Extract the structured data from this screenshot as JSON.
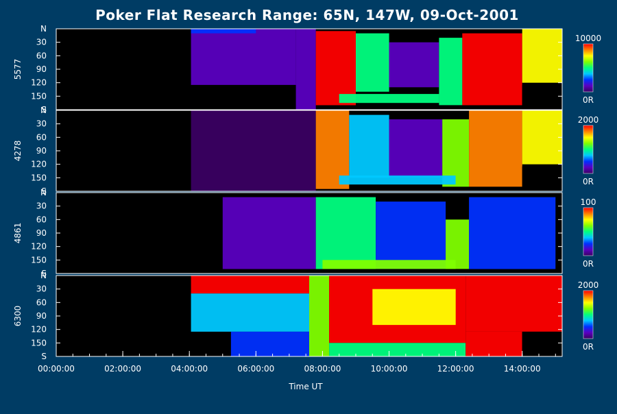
{
  "chart_data": {
    "type": "heatmap",
    "title": "Poker Flat Research Range: 65N, 147W, 09-Oct-2001",
    "xlabel": "Time UT",
    "x_ticks": [
      "00:00:00",
      "02:00:00",
      "04:00:00",
      "06:00:00",
      "08:00:00",
      "10:00:00",
      "12:00:00",
      "14:00:00"
    ],
    "x_range_hours": [
      0,
      15.2
    ],
    "y_ticks": [
      "N",
      "30",
      "60",
      "90",
      "120",
      "150",
      "S"
    ],
    "y_range_deg": [
      0,
      180
    ],
    "colormap": [
      "#3a0062",
      "#5a00c0",
      "#0030ff",
      "#00c8ff",
      "#00ff80",
      "#80ff00",
      "#ffff00",
      "#ff8000",
      "#ff0000"
    ],
    "background_color": "#003c64",
    "panels": [
      {
        "wavelength": "5577",
        "cb_max": "10000",
        "cb_min": "0R",
        "blocks": [
          {
            "t0": 0,
            "t1": 4.05,
            "a0": 0,
            "a1": 180,
            "level": -1
          },
          {
            "t0": 4.05,
            "t1": 5.25,
            "a0": 125,
            "a1": 180,
            "level": -1
          },
          {
            "t0": 4.05,
            "t1": 7.2,
            "a0": 0,
            "a1": 125,
            "level": 0.1
          },
          {
            "t0": 4.05,
            "t1": 6.0,
            "a0": 0,
            "a1": 10,
            "level": 0.3
          },
          {
            "t0": 7.2,
            "t1": 7.8,
            "a0": 0,
            "a1": 180,
            "level": 0.12
          },
          {
            "t0": 7.8,
            "t1": 9.0,
            "a0": 5,
            "a1": 170,
            "level": 0.95
          },
          {
            "t0": 9.0,
            "t1": 10.0,
            "a0": 10,
            "a1": 140,
            "level": 0.45
          },
          {
            "t0": 10.0,
            "t1": 11.5,
            "a0": 30,
            "a1": 130,
            "level": 0.15
          },
          {
            "t0": 11.5,
            "t1": 12.2,
            "a0": 20,
            "a1": 170,
            "level": 0.55
          },
          {
            "t0": 12.2,
            "t1": 14.0,
            "a0": 10,
            "a1": 170,
            "level": 0.95
          },
          {
            "t0": 14.0,
            "t1": 15.2,
            "a0": 0,
            "a1": 120,
            "level": 0.7
          },
          {
            "t0": 14.0,
            "t1": 15.2,
            "a0": 125,
            "a1": 180,
            "level": -1
          },
          {
            "t0": 8.5,
            "t1": 11.5,
            "a0": 145,
            "a1": 165,
            "level": 0.5
          }
        ]
      },
      {
        "wavelength": "4278",
        "cb_max": "2000",
        "cb_min": "0R",
        "blocks": [
          {
            "t0": 0,
            "t1": 4.05,
            "a0": 0,
            "a1": 180,
            "level": -1
          },
          {
            "t0": 4.05,
            "t1": 7.8,
            "a0": 0,
            "a1": 180,
            "level": 0.04
          },
          {
            "t0": 7.8,
            "t1": 8.8,
            "a0": 0,
            "a1": 175,
            "level": 0.85
          },
          {
            "t0": 8.8,
            "t1": 10.0,
            "a0": 10,
            "a1": 150,
            "level": 0.35
          },
          {
            "t0": 10.0,
            "t1": 11.6,
            "a0": 20,
            "a1": 150,
            "level": 0.1
          },
          {
            "t0": 11.6,
            "t1": 12.4,
            "a0": 20,
            "a1": 170,
            "level": 0.6
          },
          {
            "t0": 12.4,
            "t1": 14.0,
            "a0": 0,
            "a1": 170,
            "level": 0.9
          },
          {
            "t0": 14.0,
            "t1": 15.2,
            "a0": 0,
            "a1": 120,
            "level": 0.7
          },
          {
            "t0": 14.0,
            "t1": 15.2,
            "a0": 125,
            "a1": 180,
            "level": -1
          },
          {
            "t0": 8.5,
            "t1": 12.0,
            "a0": 145,
            "a1": 165,
            "level": 0.4
          }
        ]
      },
      {
        "wavelength": "4861",
        "cb_max": "100",
        "cb_min": "0R",
        "blocks": [
          {
            "t0": 0,
            "t1": 4.05,
            "a0": 0,
            "a1": 180,
            "level": -1
          },
          {
            "t0": 4.05,
            "t1": 15.2,
            "a0": 0,
            "a1": 180,
            "level": -1
          },
          {
            "t0": 5.0,
            "t1": 7.8,
            "a0": 10,
            "a1": 170,
            "level": 0.15
          },
          {
            "t0": 7.8,
            "t1": 9.6,
            "a0": 10,
            "a1": 170,
            "level": 0.55
          },
          {
            "t0": 9.6,
            "t1": 11.7,
            "a0": 20,
            "a1": 170,
            "level": 0.3
          },
          {
            "t0": 11.7,
            "t1": 12.4,
            "a0": 60,
            "a1": 170,
            "level": 0.6
          },
          {
            "t0": 12.4,
            "t1": 15.0,
            "a0": 10,
            "a1": 170,
            "level": 0.25
          },
          {
            "t0": 8.0,
            "t1": 12.0,
            "a0": 150,
            "a1": 170,
            "level": 0.6
          }
        ]
      },
      {
        "wavelength": "6300",
        "cb_max": "2000",
        "cb_min": "0R",
        "blocks": [
          {
            "t0": 0,
            "t1": 4.05,
            "a0": 0,
            "a1": 180,
            "level": -1
          },
          {
            "t0": 4.05,
            "t1": 5.25,
            "a0": 125,
            "a1": 180,
            "level": -1
          },
          {
            "t0": 4.05,
            "t1": 7.6,
            "a0": 0,
            "a1": 40,
            "level": 0.95
          },
          {
            "t0": 4.05,
            "t1": 7.6,
            "a0": 40,
            "a1": 125,
            "level": 0.4
          },
          {
            "t0": 5.25,
            "t1": 7.6,
            "a0": 125,
            "a1": 180,
            "level": 0.25
          },
          {
            "t0": 7.6,
            "t1": 8.2,
            "a0": 0,
            "a1": 180,
            "level": 0.6
          },
          {
            "t0": 8.2,
            "t1": 12.3,
            "a0": 0,
            "a1": 150,
            "level": 0.95
          },
          {
            "t0": 9.5,
            "t1": 12.0,
            "a0": 30,
            "a1": 110,
            "level": 0.7
          },
          {
            "t0": 8.2,
            "t1": 12.3,
            "a0": 150,
            "a1": 180,
            "level": 0.5
          },
          {
            "t0": 12.3,
            "t1": 15.2,
            "a0": 0,
            "a1": 125,
            "level": 0.95
          },
          {
            "t0": 12.3,
            "t1": 14.0,
            "a0": 125,
            "a1": 180,
            "level": 0.95
          },
          {
            "t0": 14.0,
            "t1": 15.2,
            "a0": 125,
            "a1": 180,
            "level": -1
          }
        ]
      }
    ]
  }
}
